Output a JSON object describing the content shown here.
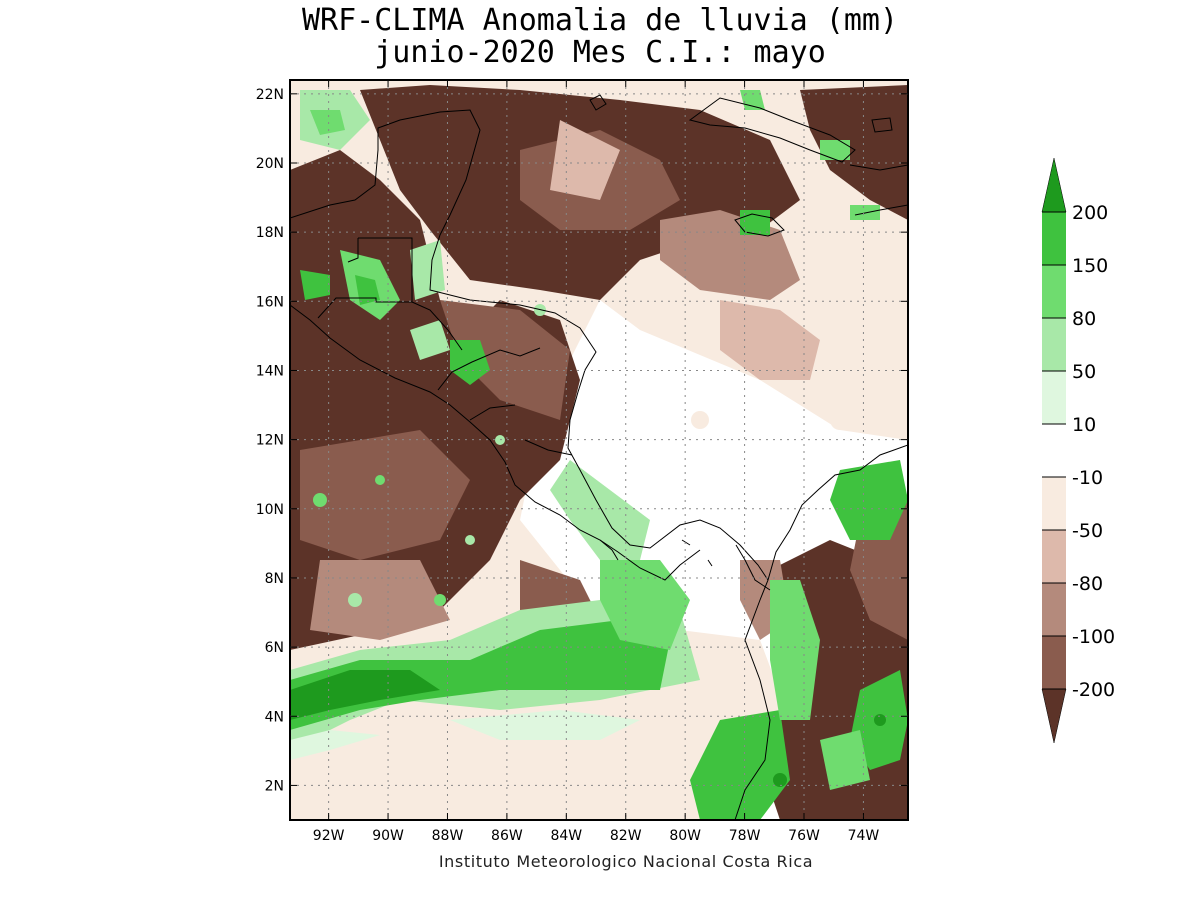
{
  "title": {
    "line1": "WRF-CLIMA Anomalia de lluvia (mm)",
    "line2": "junio-2020 Mes C.I.: mayo"
  },
  "axes": {
    "lat_labels": [
      "2N",
      "4N",
      "6N",
      "8N",
      "10N",
      "12N",
      "14N",
      "16N",
      "18N",
      "20N",
      "22N"
    ],
    "lat_values": [
      2,
      4,
      6,
      8,
      10,
      12,
      14,
      16,
      18,
      20,
      22
    ],
    "lon_labels": [
      "92W",
      "90W",
      "88W",
      "86W",
      "84W",
      "82W",
      "80W",
      "78W",
      "76W",
      "74W"
    ],
    "lon_values": [
      -92,
      -90,
      -88,
      -86,
      -84,
      -82,
      -80,
      -78,
      -76,
      -74
    ],
    "lat_range": [
      1,
      22.4
    ],
    "lon_range": [
      -93.3,
      -72.5
    ],
    "grid": "dotted"
  },
  "colorbar": {
    "labels": [
      "200",
      "150",
      "80",
      "50",
      "10",
      "-10",
      "-50",
      "-80",
      "-100",
      "-200"
    ],
    "colors": [
      "#1e9a1e",
      "#3fc23f",
      "#6fdc6f",
      "#a8e8a8",
      "#dff7df",
      "#ffffff",
      "#f8ebe0",
      "#ddb9ab",
      "#b48a7c",
      "#8a5c4e",
      "#5c3328"
    ]
  },
  "palette": {
    "dry_strong": "#5c3328",
    "dry": "#8a5c4e",
    "dry_mid": "#b48a7c",
    "dry_light": "#ddb9ab",
    "dry_faint": "#f8ebe0",
    "neutral": "#ffffff",
    "wet_faint": "#dff7df",
    "wet_light": "#a8e8a8",
    "wet_mid": "#6fdc6f",
    "wet": "#3fc23f",
    "wet_strong": "#1e9a1e"
  },
  "footer": "Instituto Meteorologico Nacional Costa Rica"
}
